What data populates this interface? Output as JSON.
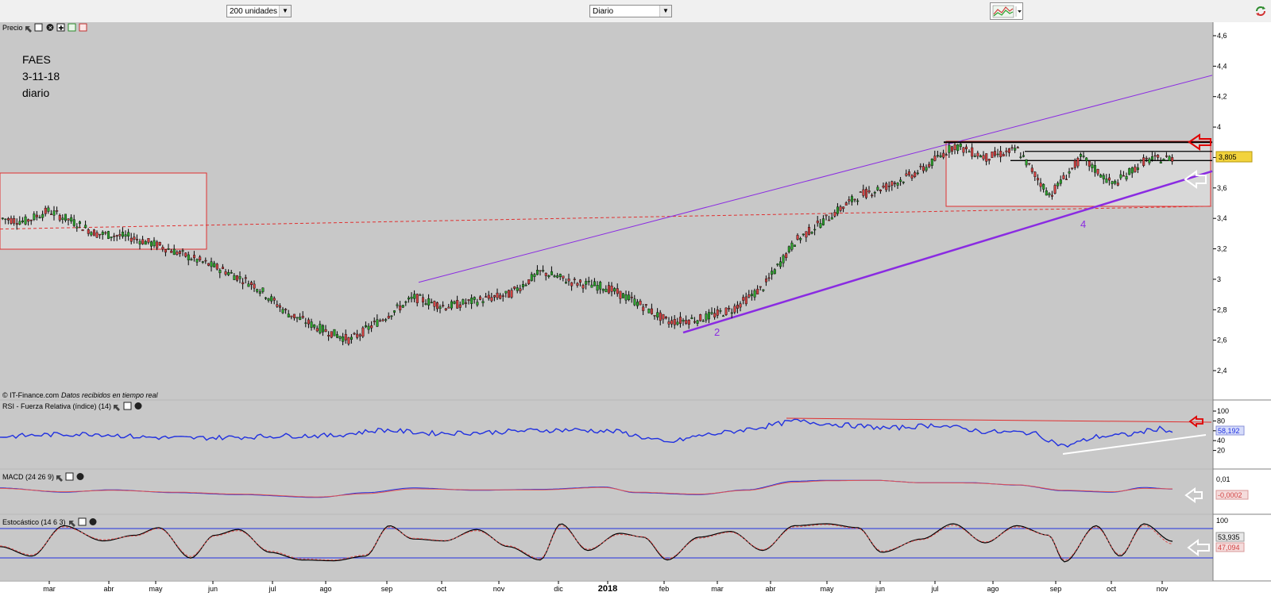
{
  "toolbar": {
    "period_select": "200 unidades",
    "interval_select": "Diario",
    "chart_type_icon": "candlestick-chart-icon",
    "refresh_icon": "refresh-icon"
  },
  "price_panel": {
    "header": "Precio",
    "annotation_lines": [
      "FAES",
      "3-11-18",
      "diario"
    ],
    "footer_brand": "© IT-Finance.com",
    "footer_note": "Datos recibidos en tiempo real",
    "wave_labels": [
      "2",
      "4"
    ],
    "last_price_label": "3,805"
  },
  "rsi_panel": {
    "header": "RSI - Fuerza Relativa (índice) (14)",
    "value_label": "58,192"
  },
  "macd_panel": {
    "header": "MACD (24 26 9)",
    "value_label": "-0,0002"
  },
  "stoch_panel": {
    "header": "Estocástico (14 6 3)",
    "value_labels": [
      "53,935",
      "47,094"
    ]
  },
  "colors": {
    "background": "#c8c8c8",
    "candle_up": "#2ca02c",
    "candle_down": "#d04040",
    "channel": "#8a2be2",
    "resistance": "#000000",
    "rsi_line": "#2030e0",
    "signal_line": "#e05050",
    "arrow_red": "#e00000"
  },
  "chart_data": [
    {
      "type": "candlestick",
      "title": "FAES",
      "x_tick_labels": [
        "mar",
        "abr",
        "may",
        "jun",
        "jul",
        "ago",
        "sep",
        "oct",
        "nov",
        "dic",
        "2018",
        "feb",
        "mar",
        "abr",
        "may",
        "jun",
        "jul",
        "ago",
        "sep",
        "oct",
        "nov"
      ],
      "y_tick_labels": [
        "4,6",
        "4,4",
        "4,2",
        "4",
        "3,8",
        "3,6",
        "3,4",
        "3,2",
        "3",
        "2,8",
        "2,6",
        "2,4"
      ],
      "ylim": [
        2.3,
        4.65
      ],
      "series": [
        {
          "name": "Precio",
          "x": [
            0,
            30,
            60,
            90,
            120,
            160,
            200,
            240,
            280,
            320,
            360,
            400,
            440,
            480,
            520,
            560,
            600,
            640,
            680,
            720,
            760,
            800,
            840,
            880,
            920,
            960,
            1000,
            1040,
            1080,
            1120,
            1160,
            1200,
            1240,
            1280,
            1320,
            1360,
            1400,
            1440,
            1480
          ],
          "values": [
            3.4,
            3.38,
            3.45,
            3.38,
            3.3,
            3.28,
            3.22,
            3.14,
            3.06,
            2.96,
            2.78,
            2.68,
            2.6,
            2.74,
            2.88,
            2.82,
            2.86,
            2.9,
            3.05,
            2.98,
            2.95,
            2.85,
            2.72,
            2.74,
            2.8,
            2.95,
            3.25,
            3.4,
            3.55,
            3.62,
            3.72,
            3.88,
            3.8,
            3.85,
            3.55,
            3.8,
            3.62,
            3.78,
            3.8
          ]
        }
      ],
      "last_value": 3.805,
      "channel_upper": {
        "x": [
          527,
          1526
        ],
        "y": [
          2.98,
          4.34
        ]
      },
      "channel_lower": {
        "x": [
          860,
          1526
        ],
        "y": [
          2.65,
          3.71
        ]
      },
      "resistance_levels": [
        3.9,
        3.84,
        3.78
      ],
      "dashed_trend": {
        "x": [
          0,
          1526
        ],
        "y": [
          3.33,
          3.48
        ]
      }
    },
    {
      "type": "line",
      "title": "RSI - Fuerza Relativa (índice) (14)",
      "y_tick_labels": [
        "100",
        "80",
        "60",
        "40",
        "20"
      ],
      "ylim": [
        0,
        100
      ],
      "series": [
        {
          "name": "RSI",
          "x": [
            0,
            60,
            120,
            180,
            240,
            300,
            360,
            420,
            480,
            540,
            600,
            660,
            720,
            780,
            840,
            880,
            920,
            960,
            1000,
            1060,
            1120,
            1180,
            1240,
            1300,
            1340,
            1380,
            1420,
            1460,
            1476
          ],
          "values": [
            48,
            52,
            54,
            47,
            45,
            47,
            50,
            50,
            62,
            55,
            56,
            60,
            62,
            58,
            35,
            50,
            58,
            68,
            80,
            72,
            65,
            72,
            58,
            56,
            28,
            48,
            52,
            65,
            58
          ]
        }
      ],
      "last_value": 58.192
    },
    {
      "type": "line",
      "title": "MACD (24 26 9)",
      "y_tick_labels": [
        "0,01",
        "0"
      ],
      "series": [
        {
          "name": "MACD",
          "x": [
            0,
            80,
            140,
            220,
            300,
            400,
            460,
            520,
            600,
            680,
            760,
            800,
            880,
            940,
            1000,
            1040,
            1100,
            1160,
            1220,
            1280,
            1340,
            1400,
            1440,
            1476
          ],
          "values": [
            0.001,
            -0.0035,
            -0.001,
            -0.004,
            -0.006,
            -0.009,
            -0.004,
            0.001,
            -0.0015,
            -0.0005,
            0.002,
            -0.004,
            -0.006,
            -0.001,
            0.008,
            0.009,
            0.009,
            0.0065,
            0.0065,
            0.004,
            -0.002,
            -0.0035,
            0.0015,
            -0.0002
          ]
        },
        {
          "name": "Señal",
          "x": [
            0,
            80,
            140,
            220,
            300,
            400,
            460,
            520,
            600,
            680,
            760,
            800,
            880,
            940,
            1000,
            1040,
            1100,
            1160,
            1220,
            1280,
            1340,
            1400,
            1440,
            1476
          ],
          "values": [
            0.0005,
            -0.003,
            -0.0015,
            -0.0035,
            -0.0055,
            -0.0085,
            -0.005,
            0.0,
            -0.001,
            -0.001,
            0.0015,
            -0.0035,
            -0.0055,
            -0.0015,
            0.007,
            0.0085,
            0.009,
            0.0065,
            0.0062,
            0.0042,
            -0.0015,
            -0.003,
            0.0005,
            0.0
          ]
        }
      ],
      "last_value": -0.0002
    },
    {
      "type": "line",
      "title": "Estocástico (14 6 3)",
      "y_tick_labels": [
        "100"
      ],
      "ylim": [
        0,
        100
      ],
      "series": [
        {
          "name": "%K",
          "x": [
            0,
            40,
            80,
            130,
            170,
            200,
            240,
            270,
            300,
            340,
            380,
            420,
            460,
            490,
            520,
            560,
            600,
            640,
            680,
            706,
            740,
            780,
            810,
            840,
            880,
            920,
            960,
            1000,
            1040,
            1080,
            1110,
            1160,
            1200,
            1240,
            1280,
            1320,
            1340,
            1380,
            1410,
            1440,
            1476
          ],
          "values": [
            40,
            15,
            95,
            55,
            70,
            90,
            10,
            70,
            85,
            25,
            5,
            3,
            15,
            95,
            60,
            55,
            85,
            40,
            5,
            100,
            30,
            75,
            65,
            5,
            65,
            80,
            30,
            95,
            100,
            90,
            25,
            60,
            100,
            50,
            95,
            70,
            0,
            95,
            15,
            100,
            54
          ]
        },
        {
          "name": "%D",
          "x": [
            0,
            40,
            80,
            130,
            170,
            200,
            240,
            270,
            300,
            340,
            380,
            420,
            460,
            490,
            520,
            560,
            600,
            640,
            680,
            706,
            740,
            780,
            810,
            840,
            880,
            920,
            960,
            1000,
            1040,
            1080,
            1110,
            1160,
            1200,
            1240,
            1280,
            1320,
            1340,
            1380,
            1410,
            1440,
            1476
          ],
          "values": [
            42,
            18,
            92,
            58,
            68,
            88,
            14,
            68,
            82,
            28,
            8,
            5,
            18,
            92,
            62,
            56,
            82,
            42,
            8,
            96,
            33,
            72,
            66,
            8,
            62,
            78,
            32,
            92,
            98,
            88,
            28,
            58,
            96,
            52,
            92,
            70,
            4,
            92,
            18,
            96,
            47
          ]
        }
      ],
      "last_values": [
        53.935,
        47.094
      ]
    }
  ]
}
